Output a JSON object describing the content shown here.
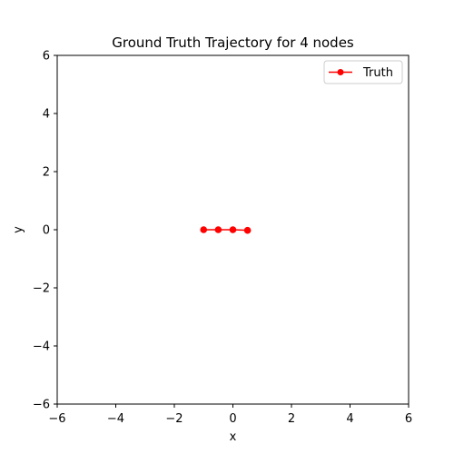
{
  "chart_data": {
    "type": "line",
    "title": "Ground Truth Trajectory for 4 nodes",
    "xlabel": "x",
    "ylabel": "y",
    "xlim": [
      -6,
      6
    ],
    "ylim": [
      -6,
      6
    ],
    "xticks": [
      -6,
      -4,
      -2,
      0,
      2,
      4,
      6
    ],
    "yticks": [
      -6,
      -4,
      -2,
      0,
      2,
      4,
      6
    ],
    "grid": false,
    "legend_position": "top-right",
    "series": [
      {
        "name": "Truth",
        "color": "#ff0000",
        "marker": "circle",
        "x": [
          -1.0,
          -0.5,
          0.0,
          0.5
        ],
        "y": [
          0.0,
          0.0,
          0.0,
          -0.02
        ]
      }
    ]
  }
}
